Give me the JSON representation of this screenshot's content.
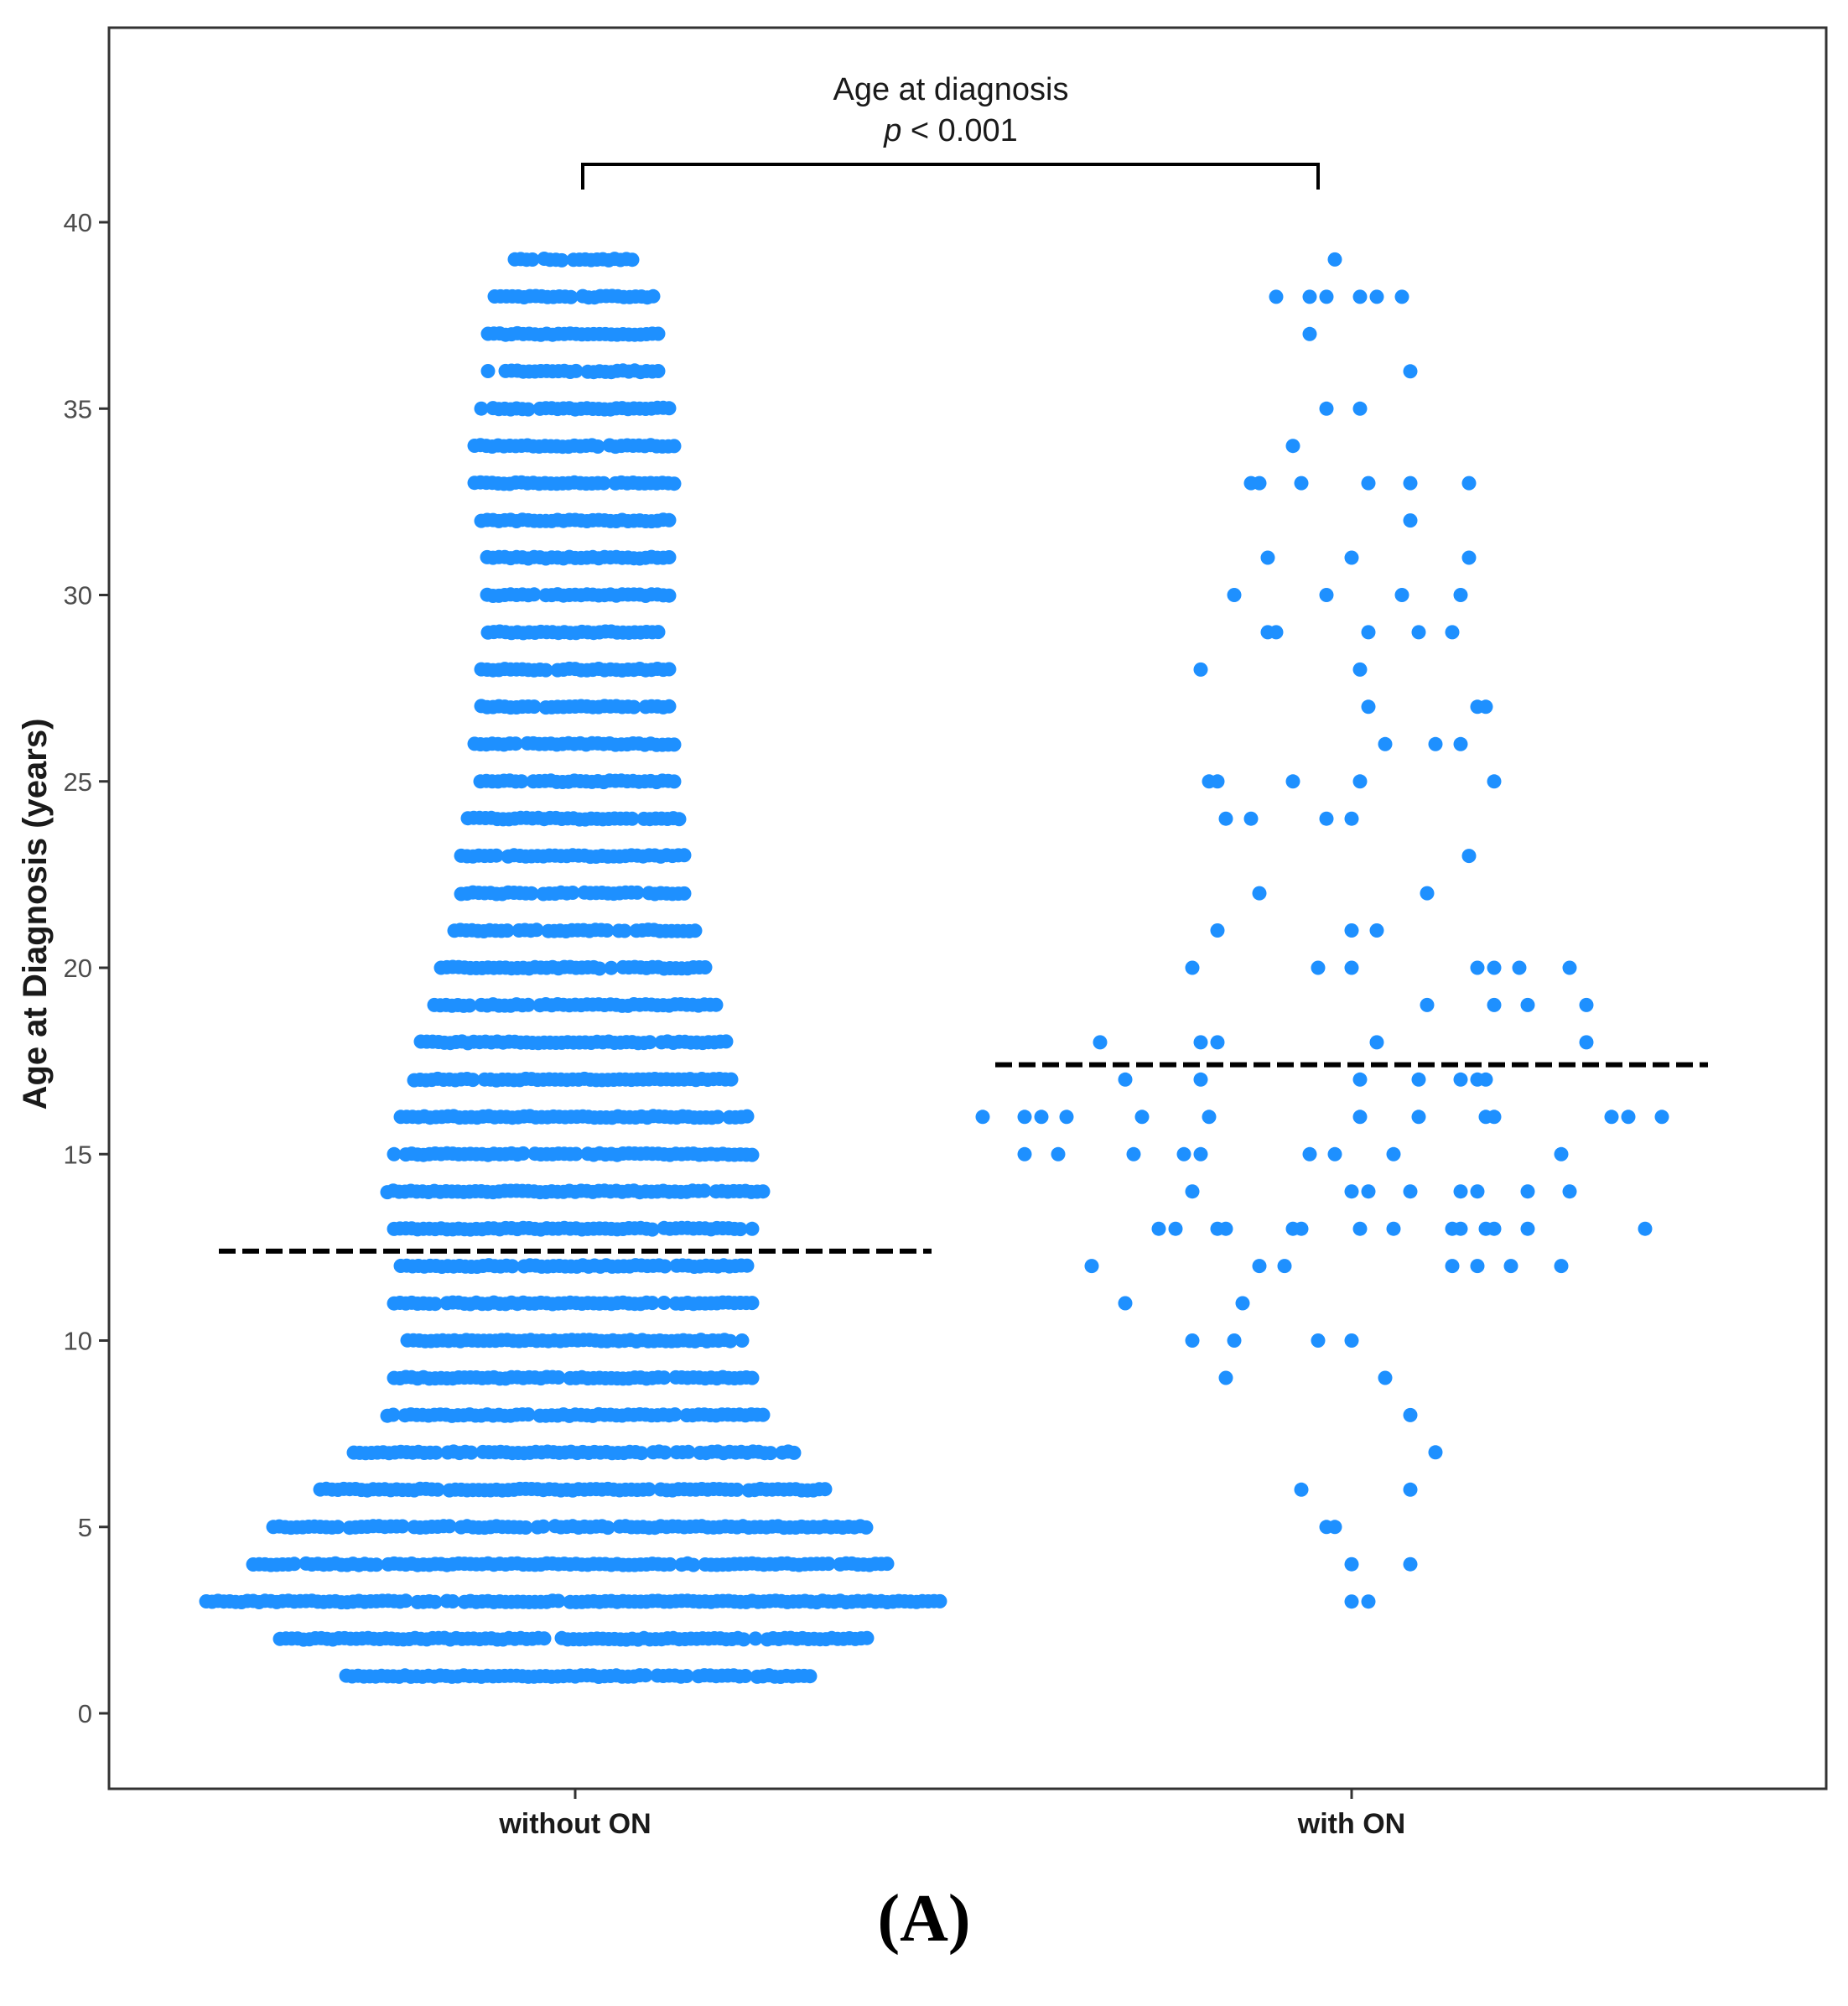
{
  "chart_data": {
    "type": "scatter",
    "subtype": "dot-strip plot (beeswarm-like) with group mean lines",
    "title": "",
    "xlabel": "",
    "ylabel": "Age at Diagnosis (years)",
    "ylim": [
      -2,
      44
    ],
    "yticks": [
      0,
      5,
      10,
      15,
      20,
      25,
      30,
      35,
      40
    ],
    "categories": [
      "without ON",
      "with ON"
    ],
    "point_color": "#1E90FF",
    "mean_line_color": "#000000",
    "annotation": {
      "label": "Age at diagnosis",
      "p_symbol": "p",
      "p_rest": " < 0.001",
      "bracket_between": [
        "without ON",
        "with ON"
      ]
    },
    "panel_label": {
      "open": "(",
      "letter": "A",
      "close": ")"
    },
    "series": [
      {
        "name": "without ON",
        "mean": 12.4,
        "age_bands": [
          {
            "age": 1,
            "count": 70
          },
          {
            "age": 2,
            "count": 88
          },
          {
            "age": 3,
            "count": 110
          },
          {
            "age": 4,
            "count": 96
          },
          {
            "age": 5,
            "count": 90
          },
          {
            "age": 6,
            "count": 76
          },
          {
            "age": 7,
            "count": 66
          },
          {
            "age": 8,
            "count": 56
          },
          {
            "age": 9,
            "count": 54
          },
          {
            "age": 10,
            "count": 50
          },
          {
            "age": 11,
            "count": 54
          },
          {
            "age": 12,
            "count": 52
          },
          {
            "age": 13,
            "count": 54
          },
          {
            "age": 14,
            "count": 56
          },
          {
            "age": 15,
            "count": 54
          },
          {
            "age": 16,
            "count": 52
          },
          {
            "age": 17,
            "count": 48
          },
          {
            "age": 18,
            "count": 46
          },
          {
            "age": 19,
            "count": 42
          },
          {
            "age": 20,
            "count": 40
          },
          {
            "age": 21,
            "count": 36
          },
          {
            "age": 22,
            "count": 34
          },
          {
            "age": 23,
            "count": 34
          },
          {
            "age": 24,
            "count": 32
          },
          {
            "age": 25,
            "count": 30
          },
          {
            "age": 26,
            "count": 30
          },
          {
            "age": 27,
            "count": 28
          },
          {
            "age": 28,
            "count": 28
          },
          {
            "age": 29,
            "count": 26
          },
          {
            "age": 30,
            "count": 28
          },
          {
            "age": 31,
            "count": 28
          },
          {
            "age": 32,
            "count": 28
          },
          {
            "age": 33,
            "count": 30
          },
          {
            "age": 34,
            "count": 30
          },
          {
            "age": 35,
            "count": 28
          },
          {
            "age": 36,
            "count": 26
          },
          {
            "age": 37,
            "count": 26
          },
          {
            "age": 38,
            "count": 24
          },
          {
            "age": 39,
            "count": 18
          }
        ]
      },
      {
        "name": "with ON",
        "mean": 17.4,
        "points": [
          {
            "age": 39,
            "offset": -0.02
          },
          {
            "age": 38,
            "offset": -0.09
          },
          {
            "age": 38,
            "offset": -0.05
          },
          {
            "age": 38,
            "offset": -0.03
          },
          {
            "age": 38,
            "offset": 0.01
          },
          {
            "age": 38,
            "offset": 0.03
          },
          {
            "age": 38,
            "offset": 0.06
          },
          {
            "age": 37,
            "offset": -0.05
          },
          {
            "age": 36,
            "offset": 0.07
          },
          {
            "age": 35,
            "offset": -0.03
          },
          {
            "age": 35,
            "offset": 0.01
          },
          {
            "age": 34,
            "offset": -0.07
          },
          {
            "age": 33,
            "offset": -0.12
          },
          {
            "age": 33,
            "offset": -0.11
          },
          {
            "age": 33,
            "offset": -0.06
          },
          {
            "age": 33,
            "offset": 0.02
          },
          {
            "age": 33,
            "offset": 0.07
          },
          {
            "age": 33,
            "offset": 0.14
          },
          {
            "age": 32,
            "offset": 0.07
          },
          {
            "age": 31,
            "offset": -0.1
          },
          {
            "age": 31,
            "offset": 0.0
          },
          {
            "age": 31,
            "offset": 0.14
          },
          {
            "age": 30,
            "offset": -0.14
          },
          {
            "age": 30,
            "offset": -0.03
          },
          {
            "age": 30,
            "offset": 0.06
          },
          {
            "age": 30,
            "offset": 0.13
          },
          {
            "age": 29,
            "offset": -0.1
          },
          {
            "age": 29,
            "offset": -0.09
          },
          {
            "age": 29,
            "offset": 0.02
          },
          {
            "age": 29,
            "offset": 0.08
          },
          {
            "age": 29,
            "offset": 0.12
          },
          {
            "age": 28,
            "offset": -0.18
          },
          {
            "age": 28,
            "offset": 0.01
          },
          {
            "age": 27,
            "offset": 0.02
          },
          {
            "age": 27,
            "offset": 0.15
          },
          {
            "age": 27,
            "offset": 0.16
          },
          {
            "age": 26,
            "offset": 0.04
          },
          {
            "age": 26,
            "offset": 0.1
          },
          {
            "age": 26,
            "offset": 0.13
          },
          {
            "age": 25,
            "offset": -0.17
          },
          {
            "age": 25,
            "offset": -0.16
          },
          {
            "age": 25,
            "offset": -0.07
          },
          {
            "age": 25,
            "offset": 0.01
          },
          {
            "age": 25,
            "offset": 0.17
          },
          {
            "age": 24,
            "offset": -0.15
          },
          {
            "age": 24,
            "offset": -0.12
          },
          {
            "age": 24,
            "offset": -0.03
          },
          {
            "age": 24,
            "offset": 0.0
          },
          {
            "age": 23,
            "offset": 0.14
          },
          {
            "age": 22,
            "offset": -0.11
          },
          {
            "age": 22,
            "offset": 0.09
          },
          {
            "age": 21,
            "offset": -0.16
          },
          {
            "age": 21,
            "offset": 0.0
          },
          {
            "age": 21,
            "offset": 0.03
          },
          {
            "age": 20,
            "offset": -0.19
          },
          {
            "age": 20,
            "offset": -0.04
          },
          {
            "age": 20,
            "offset": 0.0
          },
          {
            "age": 20,
            "offset": 0.15
          },
          {
            "age": 20,
            "offset": 0.17
          },
          {
            "age": 20,
            "offset": 0.2
          },
          {
            "age": 20,
            "offset": 0.26
          },
          {
            "age": 19,
            "offset": 0.09
          },
          {
            "age": 19,
            "offset": 0.17
          },
          {
            "age": 19,
            "offset": 0.21
          },
          {
            "age": 19,
            "offset": 0.28
          },
          {
            "age": 18,
            "offset": -0.3
          },
          {
            "age": 18,
            "offset": -0.18
          },
          {
            "age": 18,
            "offset": -0.16
          },
          {
            "age": 18,
            "offset": 0.03
          },
          {
            "age": 18,
            "offset": 0.28
          },
          {
            "age": 17,
            "offset": -0.27
          },
          {
            "age": 17,
            "offset": -0.18
          },
          {
            "age": 17,
            "offset": 0.01
          },
          {
            "age": 17,
            "offset": 0.08
          },
          {
            "age": 17,
            "offset": 0.13
          },
          {
            "age": 17,
            "offset": 0.15
          },
          {
            "age": 17,
            "offset": 0.16
          },
          {
            "age": 16,
            "offset": -0.44
          },
          {
            "age": 16,
            "offset": -0.39
          },
          {
            "age": 16,
            "offset": -0.37
          },
          {
            "age": 16,
            "offset": -0.34
          },
          {
            "age": 16,
            "offset": -0.25
          },
          {
            "age": 16,
            "offset": -0.17
          },
          {
            "age": 16,
            "offset": 0.01
          },
          {
            "age": 16,
            "offset": 0.08
          },
          {
            "age": 16,
            "offset": 0.16
          },
          {
            "age": 16,
            "offset": 0.17
          },
          {
            "age": 16,
            "offset": 0.31
          },
          {
            "age": 16,
            "offset": 0.33
          },
          {
            "age": 16,
            "offset": 0.37
          },
          {
            "age": 15,
            "offset": -0.39
          },
          {
            "age": 15,
            "offset": -0.35
          },
          {
            "age": 15,
            "offset": -0.26
          },
          {
            "age": 15,
            "offset": -0.2
          },
          {
            "age": 15,
            "offset": -0.18
          },
          {
            "age": 15,
            "offset": -0.05
          },
          {
            "age": 15,
            "offset": -0.02
          },
          {
            "age": 15,
            "offset": 0.05
          },
          {
            "age": 15,
            "offset": 0.25
          },
          {
            "age": 14,
            "offset": -0.19
          },
          {
            "age": 14,
            "offset": 0.0
          },
          {
            "age": 14,
            "offset": 0.02
          },
          {
            "age": 14,
            "offset": 0.07
          },
          {
            "age": 14,
            "offset": 0.13
          },
          {
            "age": 14,
            "offset": 0.15
          },
          {
            "age": 14,
            "offset": 0.21
          },
          {
            "age": 14,
            "offset": 0.26
          },
          {
            "age": 13,
            "offset": -0.23
          },
          {
            "age": 13,
            "offset": -0.21
          },
          {
            "age": 13,
            "offset": -0.16
          },
          {
            "age": 13,
            "offset": -0.15
          },
          {
            "age": 13,
            "offset": -0.07
          },
          {
            "age": 13,
            "offset": -0.06
          },
          {
            "age": 13,
            "offset": 0.01
          },
          {
            "age": 13,
            "offset": 0.05
          },
          {
            "age": 13,
            "offset": 0.12
          },
          {
            "age": 13,
            "offset": 0.13
          },
          {
            "age": 13,
            "offset": 0.16
          },
          {
            "age": 13,
            "offset": 0.17
          },
          {
            "age": 13,
            "offset": 0.21
          },
          {
            "age": 13,
            "offset": 0.35
          },
          {
            "age": 12,
            "offset": -0.31
          },
          {
            "age": 12,
            "offset": -0.11
          },
          {
            "age": 12,
            "offset": -0.08
          },
          {
            "age": 12,
            "offset": 0.12
          },
          {
            "age": 12,
            "offset": 0.15
          },
          {
            "age": 12,
            "offset": 0.19
          },
          {
            "age": 12,
            "offset": 0.25
          },
          {
            "age": 11,
            "offset": -0.27
          },
          {
            "age": 11,
            "offset": -0.13
          },
          {
            "age": 10,
            "offset": -0.19
          },
          {
            "age": 10,
            "offset": -0.14
          },
          {
            "age": 10,
            "offset": -0.04
          },
          {
            "age": 10,
            "offset": 0.0
          },
          {
            "age": 9,
            "offset": -0.15
          },
          {
            "age": 9,
            "offset": 0.04
          },
          {
            "age": 8,
            "offset": 0.07
          },
          {
            "age": 7,
            "offset": 0.1
          },
          {
            "age": 6,
            "offset": -0.06
          },
          {
            "age": 6,
            "offset": 0.07
          },
          {
            "age": 5,
            "offset": -0.03
          },
          {
            "age": 5,
            "offset": -0.02
          },
          {
            "age": 4,
            "offset": 0.0
          },
          {
            "age": 4,
            "offset": 0.07
          },
          {
            "age": 3,
            "offset": 0.0
          },
          {
            "age": 3,
            "offset": 0.02
          }
        ]
      }
    ]
  }
}
